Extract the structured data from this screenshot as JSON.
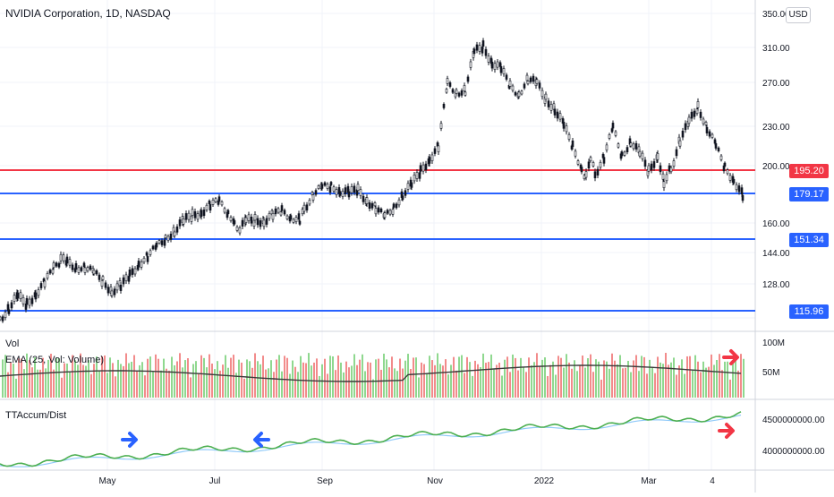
{
  "header": {
    "title": "NVIDIA Corporation, 1D, NASDAQ",
    "currency": "USD"
  },
  "price_axis": {
    "ticks": [
      "350.00",
      "310.00",
      "270.00",
      "230.00",
      "200.00",
      "160.00",
      "144.00",
      "128.00"
    ],
    "tags": [
      {
        "label": "195.20",
        "value": 195.2,
        "color": "#f23645"
      },
      {
        "label": "179.17",
        "value": 179.17,
        "color": "#2962ff"
      },
      {
        "label": "151.34",
        "value": 151.34,
        "color": "#2962ff"
      },
      {
        "label": "115.96",
        "value": 115.96,
        "color": "#2962ff"
      }
    ]
  },
  "volume_pane": {
    "label": "Vol",
    "ema_label": "EMA (25, Vol: Volume)",
    "ticks": [
      "100M",
      "50M"
    ]
  },
  "accum_pane": {
    "label": "TTAccum/Dist",
    "ticks": [
      "4500000000.00",
      "4000000000.00"
    ]
  },
  "time_axis": {
    "ticks": [
      "May",
      "Jul",
      "Sep",
      "Nov",
      "2022",
      "Mar",
      "4"
    ]
  },
  "colors": {
    "bull_volume": "#8fd88f",
    "bear_volume": "#f28b8b",
    "accum_line": "#4caf50",
    "accum_signal": "#90caf9",
    "support_line": "#2962ff",
    "resistance_line": "#f23645",
    "arrow_blue": "#2962ff",
    "arrow_red": "#f23645"
  },
  "chart_data": {
    "type": "line",
    "price_path": [
      [
        0,
        120
      ],
      [
        10,
        128
      ],
      [
        20,
        136
      ],
      [
        30,
        131
      ],
      [
        40,
        140
      ],
      [
        50,
        147
      ],
      [
        60,
        158
      ],
      [
        68,
        165
      ],
      [
        75,
        162
      ],
      [
        85,
        160
      ],
      [
        95,
        160
      ],
      [
        105,
        154
      ],
      [
        115,
        149
      ],
      [
        125,
        142
      ],
      [
        135,
        144
      ],
      [
        145,
        152
      ],
      [
        155,
        163
      ],
      [
        165,
        168
      ],
      [
        175,
        174
      ],
      [
        185,
        182
      ],
      [
        195,
        188
      ],
      [
        205,
        194
      ],
      [
        215,
        199
      ],
      [
        225,
        203
      ],
      [
        235,
        207
      ],
      [
        245,
        209
      ],
      [
        255,
        202
      ],
      [
        262,
        196
      ],
      [
        268,
        188
      ],
      [
        275,
        194
      ],
      [
        285,
        196
      ],
      [
        295,
        196
      ],
      [
        305,
        199
      ],
      [
        315,
        202
      ],
      [
        325,
        199
      ],
      [
        335,
        196
      ],
      [
        340,
        205
      ],
      [
        350,
        216
      ],
      [
        360,
        220
      ],
      [
        370,
        222
      ],
      [
        380,
        219
      ],
      [
        390,
        216
      ],
      [
        400,
        218
      ],
      [
        410,
        212
      ],
      [
        420,
        205
      ],
      [
        430,
        197
      ],
      [
        440,
        206
      ],
      [
        450,
        216
      ],
      [
        460,
        222
      ],
      [
        470,
        233
      ],
      [
        480,
        244
      ],
      [
        490,
        252
      ],
      [
        500,
        300
      ],
      [
        510,
        295
      ],
      [
        520,
        296
      ],
      [
        530,
        324
      ],
      [
        540,
        330
      ],
      [
        550,
        318
      ],
      [
        560,
        312
      ],
      [
        570,
        298
      ],
      [
        580,
        294
      ],
      [
        590,
        304
      ],
      [
        600,
        300
      ],
      [
        610,
        290
      ],
      [
        620,
        282
      ],
      [
        630,
        268
      ],
      [
        640,
        252
      ],
      [
        650,
        237
      ],
      [
        655,
        228
      ],
      [
        660,
        244
      ],
      [
        665,
        232
      ],
      [
        675,
        244
      ],
      [
        685,
        266
      ],
      [
        695,
        246
      ],
      [
        705,
        257
      ],
      [
        715,
        246
      ],
      [
        725,
        233
      ],
      [
        735,
        247
      ],
      [
        742,
        226
      ],
      [
        750,
        236
      ],
      [
        760,
        257
      ],
      [
        770,
        270
      ],
      [
        780,
        284
      ],
      [
        790,
        268
      ],
      [
        800,
        252
      ],
      [
        810,
        236
      ],
      [
        820,
        228
      ],
      [
        830,
        214
      ],
      [
        833,
        195.2
      ]
    ],
    "levels": [
      195.2,
      179.17,
      151.34,
      115.96
    ],
    "price_range": [
      110,
      355
    ]
  }
}
